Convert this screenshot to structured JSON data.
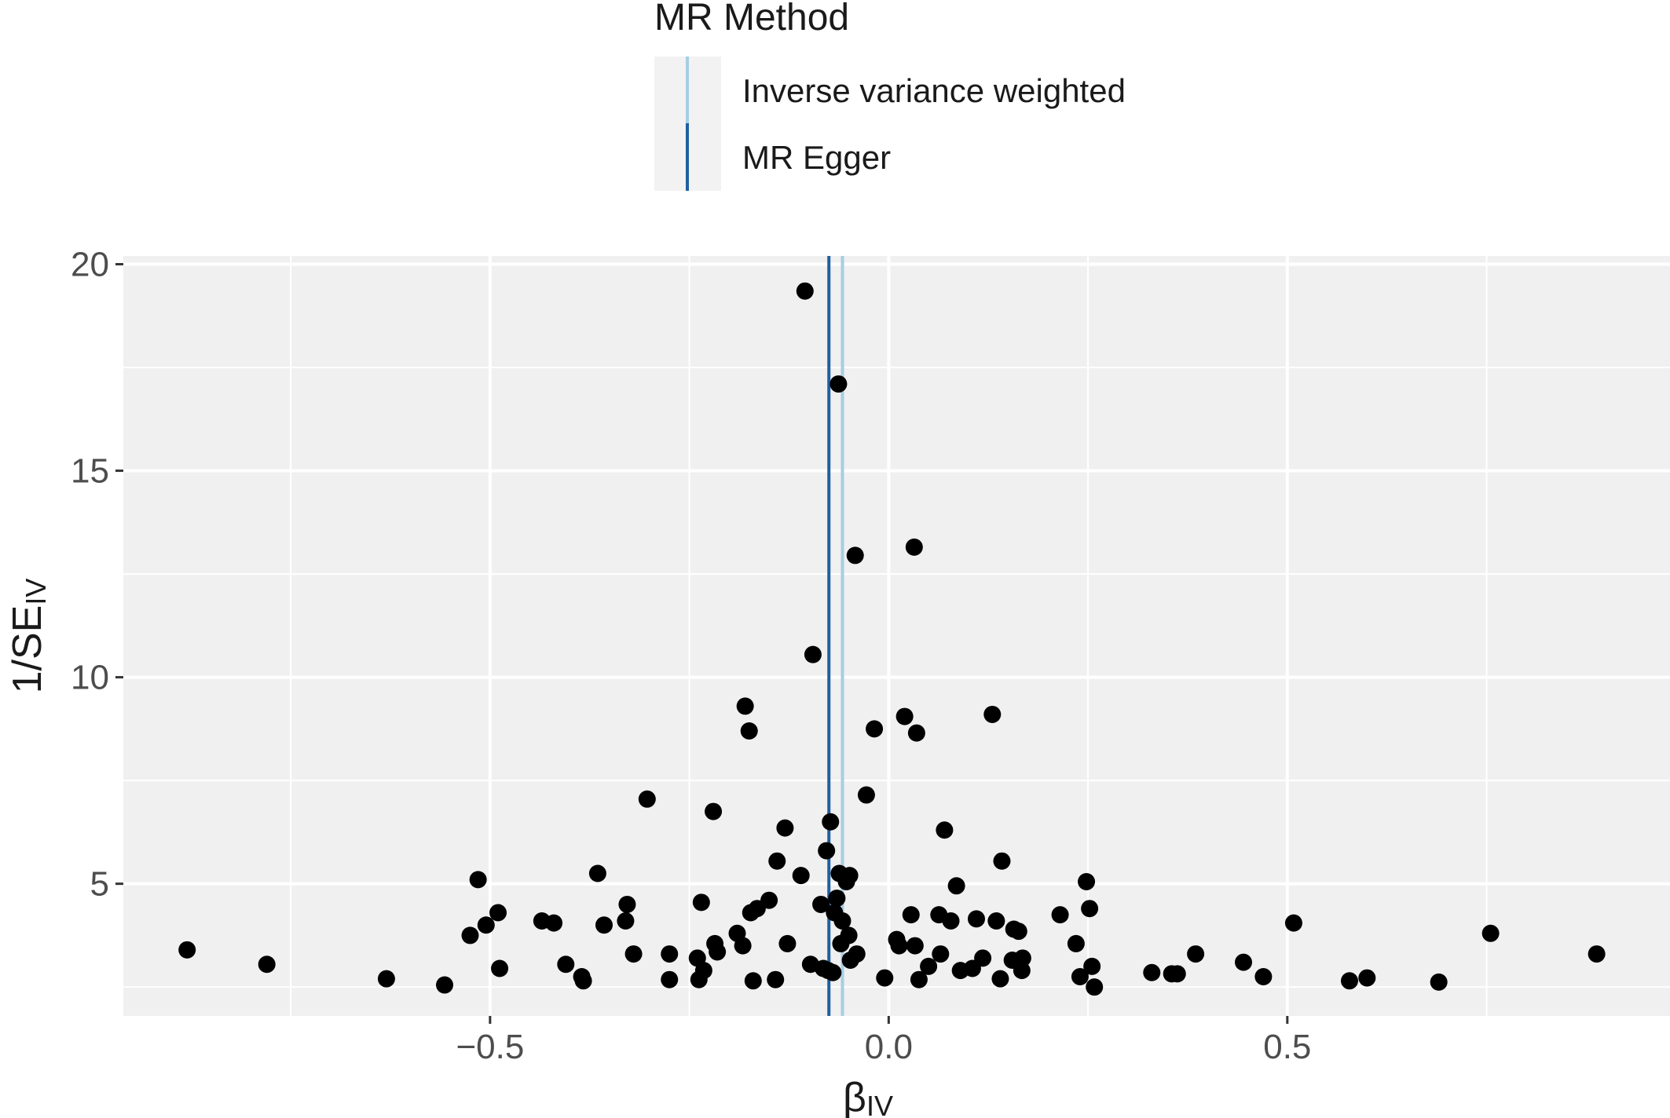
{
  "chart_data": {
    "type": "scatter",
    "title": "",
    "xlabel": "β",
    "xlabel_sub": "IV",
    "ylabel": "1/SE",
    "ylabel_sub": "IV",
    "xlim": [
      -0.96,
      0.98
    ],
    "ylim": [
      1.8,
      20.2
    ],
    "x_ticks": [
      -0.5,
      0.0,
      0.5
    ],
    "x_tick_labels": [
      "−0.5",
      "0.0",
      "0.5"
    ],
    "y_ticks": [
      5,
      10,
      15,
      20
    ],
    "y_tick_labels": [
      "5",
      "10",
      "15",
      "20"
    ],
    "grid": true,
    "legend": {
      "title": "MR Method",
      "position": "top",
      "entries": [
        {
          "name": "Inverse variance weighted",
          "color": "#a6cee3"
        },
        {
          "name": "MR Egger",
          "color": "#1f5fa0"
        }
      ]
    },
    "lines": [
      {
        "method": "Inverse variance weighted",
        "x": -0.058,
        "color": "#a6cee3"
      },
      {
        "method": "MR Egger",
        "x": -0.075,
        "color": "#1f5fa0"
      }
    ],
    "points": [
      {
        "x": -0.88,
        "y": 3.4
      },
      {
        "x": -0.78,
        "y": 3.05
      },
      {
        "x": -0.63,
        "y": 2.7
      },
      {
        "x": -0.557,
        "y": 2.55
      },
      {
        "x": -0.525,
        "y": 3.75
      },
      {
        "x": -0.515,
        "y": 5.1
      },
      {
        "x": -0.505,
        "y": 4.0
      },
      {
        "x": -0.49,
        "y": 4.3
      },
      {
        "x": -0.488,
        "y": 2.95
      },
      {
        "x": -0.435,
        "y": 4.1
      },
      {
        "x": -0.42,
        "y": 4.05
      },
      {
        "x": -0.405,
        "y": 3.05
      },
      {
        "x": -0.385,
        "y": 2.75
      },
      {
        "x": -0.383,
        "y": 2.65
      },
      {
        "x": -0.365,
        "y": 5.25
      },
      {
        "x": -0.357,
        "y": 4.0
      },
      {
        "x": -0.33,
        "y": 4.1
      },
      {
        "x": -0.328,
        "y": 4.5
      },
      {
        "x": -0.32,
        "y": 3.3
      },
      {
        "x": -0.303,
        "y": 7.05
      },
      {
        "x": -0.275,
        "y": 3.3
      },
      {
        "x": -0.275,
        "y": 2.68
      },
      {
        "x": -0.24,
        "y": 3.2
      },
      {
        "x": -0.238,
        "y": 2.68
      },
      {
        "x": -0.235,
        "y": 4.55
      },
      {
        "x": -0.232,
        "y": 2.9
      },
      {
        "x": -0.22,
        "y": 6.75
      },
      {
        "x": -0.218,
        "y": 3.55
      },
      {
        "x": -0.215,
        "y": 3.35
      },
      {
        "x": -0.19,
        "y": 3.8
      },
      {
        "x": -0.183,
        "y": 3.5
      },
      {
        "x": -0.18,
        "y": 9.3
      },
      {
        "x": -0.175,
        "y": 8.7
      },
      {
        "x": -0.173,
        "y": 4.3
      },
      {
        "x": -0.17,
        "y": 2.65
      },
      {
        "x": -0.165,
        "y": 4.4
      },
      {
        "x": -0.15,
        "y": 4.6
      },
      {
        "x": -0.142,
        "y": 2.68
      },
      {
        "x": -0.14,
        "y": 5.55
      },
      {
        "x": -0.13,
        "y": 6.35
      },
      {
        "x": -0.127,
        "y": 3.55
      },
      {
        "x": -0.11,
        "y": 5.2
      },
      {
        "x": -0.105,
        "y": 19.35
      },
      {
        "x": -0.098,
        "y": 3.05
      },
      {
        "x": -0.095,
        "y": 10.55
      },
      {
        "x": -0.085,
        "y": 4.5
      },
      {
        "x": -0.082,
        "y": 2.95
      },
      {
        "x": -0.078,
        "y": 5.8
      },
      {
        "x": -0.076,
        "y": 2.9
      },
      {
        "x": -0.073,
        "y": 6.5
      },
      {
        "x": -0.07,
        "y": 2.85
      },
      {
        "x": -0.068,
        "y": 4.3
      },
      {
        "x": -0.065,
        "y": 4.65
      },
      {
        "x": -0.063,
        "y": 17.1
      },
      {
        "x": -0.062,
        "y": 5.25
      },
      {
        "x": -0.06,
        "y": 3.55
      },
      {
        "x": -0.058,
        "y": 4.1
      },
      {
        "x": -0.053,
        "y": 5.05
      },
      {
        "x": -0.05,
        "y": 3.75
      },
      {
        "x": -0.049,
        "y": 5.2
      },
      {
        "x": -0.048,
        "y": 3.15
      },
      {
        "x": -0.042,
        "y": 12.95
      },
      {
        "x": -0.04,
        "y": 3.3
      },
      {
        "x": -0.028,
        "y": 7.15
      },
      {
        "x": -0.018,
        "y": 8.75
      },
      {
        "x": -0.005,
        "y": 2.72
      },
      {
        "x": 0.01,
        "y": 3.65
      },
      {
        "x": 0.013,
        "y": 3.5
      },
      {
        "x": 0.02,
        "y": 9.05
      },
      {
        "x": 0.028,
        "y": 4.25
      },
      {
        "x": 0.032,
        "y": 13.15
      },
      {
        "x": 0.035,
        "y": 8.65
      },
      {
        "x": 0.033,
        "y": 3.5
      },
      {
        "x": 0.038,
        "y": 2.68
      },
      {
        "x": 0.05,
        "y": 3.0
      },
      {
        "x": 0.063,
        "y": 4.25
      },
      {
        "x": 0.065,
        "y": 3.3
      },
      {
        "x": 0.07,
        "y": 6.3
      },
      {
        "x": 0.078,
        "y": 4.1
      },
      {
        "x": 0.085,
        "y": 4.95
      },
      {
        "x": 0.09,
        "y": 2.9
      },
      {
        "x": 0.105,
        "y": 2.95
      },
      {
        "x": 0.11,
        "y": 4.15
      },
      {
        "x": 0.118,
        "y": 3.2
      },
      {
        "x": 0.13,
        "y": 9.1
      },
      {
        "x": 0.135,
        "y": 4.1
      },
      {
        "x": 0.14,
        "y": 2.7
      },
      {
        "x": 0.142,
        "y": 5.55
      },
      {
        "x": 0.155,
        "y": 3.15
      },
      {
        "x": 0.157,
        "y": 3.9
      },
      {
        "x": 0.163,
        "y": 3.85
      },
      {
        "x": 0.167,
        "y": 2.9
      },
      {
        "x": 0.168,
        "y": 3.2
      },
      {
        "x": 0.215,
        "y": 4.25
      },
      {
        "x": 0.235,
        "y": 3.55
      },
      {
        "x": 0.24,
        "y": 2.75
      },
      {
        "x": 0.248,
        "y": 5.05
      },
      {
        "x": 0.252,
        "y": 4.4
      },
      {
        "x": 0.255,
        "y": 3.0
      },
      {
        "x": 0.258,
        "y": 2.5
      },
      {
        "x": 0.33,
        "y": 2.85
      },
      {
        "x": 0.355,
        "y": 2.82
      },
      {
        "x": 0.362,
        "y": 2.82
      },
      {
        "x": 0.385,
        "y": 3.3
      },
      {
        "x": 0.445,
        "y": 3.1
      },
      {
        "x": 0.47,
        "y": 2.75
      },
      {
        "x": 0.508,
        "y": 4.05
      },
      {
        "x": 0.578,
        "y": 2.65
      },
      {
        "x": 0.6,
        "y": 2.72
      },
      {
        "x": 0.69,
        "y": 2.62
      },
      {
        "x": 0.755,
        "y": 3.8
      },
      {
        "x": 0.888,
        "y": 3.3
      }
    ]
  }
}
